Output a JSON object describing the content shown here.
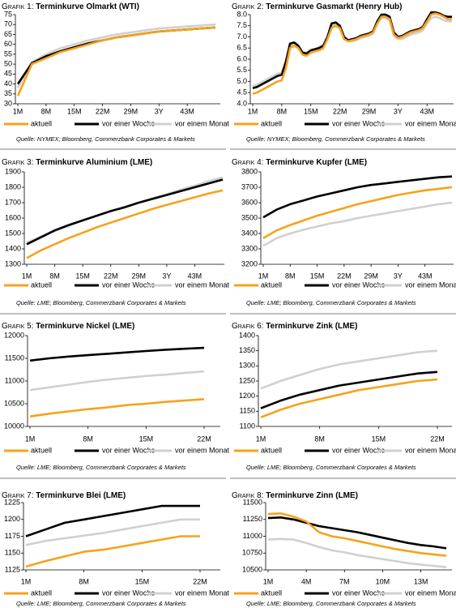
{
  "chart_data": [
    {
      "type": "line",
      "label": "Grafik 1:",
      "title": "Terminkurve Olmarkt (WTI)",
      "categories": [
        "1M",
        null,
        "8M",
        null,
        "15M",
        null,
        "22M",
        null,
        "29M",
        null,
        "3Y",
        null,
        "43M",
        null,
        null
      ],
      "series": [
        {
          "name": "aktuell",
          "color": "#f7a21b",
          "values": [
            34,
            50,
            53,
            56,
            58,
            60,
            62,
            63.5,
            64.5,
            65.5,
            66.5,
            67,
            67.5,
            68,
            68.5
          ]
        },
        {
          "name": "vor einer Woche",
          "color": "#000000",
          "values": [
            40,
            50.5,
            54,
            56.5,
            58.5,
            60.5,
            62,
            63.5,
            64.5,
            65.5,
            66.5,
            67,
            67.5,
            68,
            68.5
          ]
        },
        {
          "name": "vor einem Monat",
          "color": "#d0d0d0",
          "values": [
            38,
            51,
            55,
            58,
            60,
            62,
            63.5,
            65,
            66,
            67,
            68,
            68.5,
            69,
            69.5,
            70
          ]
        }
      ],
      "ylim": [
        30,
        75
      ],
      "yticks": [
        30,
        35,
        40,
        45,
        50,
        55,
        60,
        65,
        70,
        75
      ],
      "source": "Quelle: NYMEX; Bloomberg, Commerzbank Corporates & Markets"
    },
    {
      "type": "line",
      "label": "Grafik 2:",
      "title": "Terminkurve Gasmarkt (Henry Hub)",
      "categories": [
        "1M",
        null,
        null,
        null,
        null,
        null,
        null,
        "8M",
        null,
        null,
        null,
        null,
        null,
        null,
        "15M",
        null,
        null,
        null,
        null,
        null,
        null,
        "22M",
        null,
        null,
        null,
        null,
        null,
        null,
        "29M",
        null,
        null,
        null,
        null,
        null,
        null,
        "3Y",
        null,
        null,
        null,
        null,
        null,
        null,
        "43M",
        null,
        null,
        null,
        null,
        null,
        null
      ],
      "series": [
        {
          "name": "aktuell",
          "color": "#f7a21b",
          "values": [
            4.45,
            4.5,
            4.6,
            4.7,
            4.8,
            4.9,
            5.0,
            5.05,
            5.6,
            6.5,
            6.6,
            6.5,
            6.2,
            6.15,
            6.3,
            6.35,
            6.4,
            6.5,
            6.9,
            7.4,
            7.5,
            7.4,
            6.9,
            6.8,
            6.85,
            6.9,
            7.0,
            7.05,
            7.1,
            7.2,
            7.6,
            7.9,
            7.9,
            7.8,
            7.1,
            6.95,
            7.0,
            7.1,
            7.2,
            7.25,
            7.3,
            7.4,
            7.7,
            8.0,
            8.05,
            8.0,
            7.9,
            7.8,
            7.8
          ]
        },
        {
          "name": "vor einer Woche",
          "color": "#000000",
          "values": [
            4.7,
            4.75,
            4.85,
            4.95,
            5.05,
            5.15,
            5.25,
            5.3,
            5.9,
            6.7,
            6.75,
            6.6,
            6.3,
            6.25,
            6.4,
            6.45,
            6.5,
            6.6,
            7.0,
            7.6,
            7.65,
            7.5,
            7.0,
            6.85,
            6.9,
            6.95,
            7.05,
            7.1,
            7.15,
            7.25,
            7.7,
            8.0,
            8.0,
            7.9,
            7.2,
            7.0,
            7.05,
            7.15,
            7.25,
            7.3,
            7.35,
            7.45,
            7.8,
            8.1,
            8.1,
            8.05,
            7.95,
            7.9,
            7.9
          ]
        },
        {
          "name": "vor einem Monat",
          "color": "#d0d0d0",
          "values": [
            4.8,
            4.85,
            4.95,
            5.05,
            5.15,
            5.25,
            5.35,
            5.4,
            5.9,
            6.6,
            6.7,
            6.55,
            6.3,
            6.3,
            6.4,
            6.45,
            6.55,
            6.65,
            7.0,
            7.5,
            7.55,
            7.4,
            6.95,
            6.8,
            6.8,
            6.85,
            6.95,
            7.0,
            7.05,
            7.15,
            7.6,
            7.85,
            7.85,
            7.75,
            7.05,
            6.9,
            6.9,
            7.0,
            7.1,
            7.15,
            7.2,
            7.3,
            7.6,
            7.85,
            7.9,
            7.85,
            7.75,
            7.7,
            7.7
          ]
        }
      ],
      "ylim": [
        4,
        8
      ],
      "yticks": [
        {
          "value": 4,
          "label": "4.0"
        },
        {
          "value": 4.5,
          "label": "4.5"
        },
        {
          "value": 5,
          "label": "5.0"
        },
        {
          "value": 5.5,
          "label": "5.5"
        },
        {
          "value": 6,
          "label": "6.0"
        },
        {
          "value": 6.5,
          "label": "6.5"
        },
        {
          "value": 7,
          "label": "7.0"
        },
        {
          "value": 7.5,
          "label": "7.5"
        },
        {
          "value": 8,
          "label": "8.0"
        }
      ],
      "source": "Quelle: NYMEX; Bloomberg, Commerzbank Corporates & Markets"
    },
    {
      "type": "line",
      "label": "Grafik 3:",
      "title": "Terminkurve Aluminium (LME)",
      "categories": [
        "1M",
        null,
        "8M",
        null,
        "15M",
        null,
        "22M",
        null,
        "29M",
        null,
        "3Y",
        null,
        "43M",
        null,
        null
      ],
      "series": [
        {
          "name": "aktuell",
          "color": "#f7a21b",
          "values": [
            1340,
            1390,
            1430,
            1470,
            1505,
            1540,
            1570,
            1600,
            1630,
            1660,
            1685,
            1710,
            1735,
            1760,
            1780
          ]
        },
        {
          "name": "vor einer Woche",
          "color": "#000000",
          "values": [
            1430,
            1475,
            1520,
            1555,
            1585,
            1615,
            1645,
            1670,
            1700,
            1725,
            1750,
            1775,
            1800,
            1825,
            1850
          ]
        },
        {
          "name": "vor einem Monat",
          "color": "#d0d0d0",
          "values": [
            1440,
            1480,
            1515,
            1550,
            1585,
            1615,
            1645,
            1675,
            1700,
            1730,
            1755,
            1785,
            1810,
            1840,
            1865
          ]
        }
      ],
      "ylim": [
        1300,
        1900
      ],
      "yticks": [
        1300,
        1400,
        1500,
        1600,
        1700,
        1800,
        1900
      ],
      "source": "Quelle: LME; Bloomberg, Commerzbank Corporates & Markets"
    },
    {
      "type": "line",
      "label": "Grafik 4:",
      "title": "Terminkurve Kupfer (LME)",
      "categories": [
        "1M",
        null,
        "8M",
        null,
        "15M",
        null,
        "22M",
        null,
        "29M",
        null,
        "3Y",
        null,
        "43M",
        null,
        null
      ],
      "series": [
        {
          "name": "aktuell",
          "color": "#f7a21b",
          "values": [
            3370,
            3420,
            3455,
            3485,
            3515,
            3540,
            3565,
            3590,
            3610,
            3630,
            3650,
            3665,
            3680,
            3690,
            3700
          ]
        },
        {
          "name": "vor einer Woche",
          "color": "#000000",
          "values": [
            3505,
            3555,
            3590,
            3615,
            3640,
            3660,
            3680,
            3700,
            3715,
            3725,
            3735,
            3745,
            3755,
            3765,
            3770
          ]
        },
        {
          "name": "vor einem Monat",
          "color": "#d0d0d0",
          "values": [
            3320,
            3370,
            3400,
            3425,
            3445,
            3465,
            3480,
            3500,
            3515,
            3530,
            3545,
            3560,
            3575,
            3590,
            3600
          ]
        }
      ],
      "ylim": [
        3200,
        3800
      ],
      "yticks": [
        3200,
        3300,
        3400,
        3500,
        3600,
        3700,
        3800
      ],
      "source": "Quelle: LME; Bloomberg, Commerzbank Corporates & Markets"
    },
    {
      "type": "line",
      "label": "Grafik 5:",
      "title": "Terminkurve Nickel (LME)",
      "categories": [
        "1M",
        null,
        null,
        "8M",
        null,
        null,
        "15M",
        null,
        null,
        "22M"
      ],
      "series": [
        {
          "name": "aktuell",
          "color": "#f7a21b",
          "values": [
            10220,
            10280,
            10330,
            10380,
            10420,
            10470,
            10500,
            10540,
            10570,
            10600
          ]
        },
        {
          "name": "vor einer Woche",
          "color": "#000000",
          "values": [
            11450,
            11500,
            11540,
            11570,
            11600,
            11630,
            11660,
            11690,
            11710,
            11730
          ]
        },
        {
          "name": "vor einem Monat",
          "color": "#d0d0d0",
          "values": [
            10800,
            10860,
            10920,
            10980,
            11030,
            11070,
            11110,
            11140,
            11180,
            11210
          ]
        }
      ],
      "ylim": [
        10000,
        12000
      ],
      "yticks": [
        10000,
        10500,
        11000,
        11500,
        12000
      ],
      "source": "Quelle: LME; Bloomberg, Commerzbank Corporates & Markets"
    },
    {
      "type": "line",
      "label": "Grafik 6:",
      "title": "Terminkurve Zink (LME)",
      "categories": [
        "1M",
        null,
        null,
        "8M",
        null,
        null,
        "15M",
        null,
        null,
        "22M"
      ],
      "series": [
        {
          "name": "aktuell",
          "color": "#f7a21b",
          "values": [
            1130,
            1155,
            1175,
            1190,
            1205,
            1220,
            1230,
            1240,
            1250,
            1255
          ]
        },
        {
          "name": "vor einer Woche",
          "color": "#000000",
          "values": [
            1160,
            1185,
            1205,
            1220,
            1235,
            1245,
            1255,
            1265,
            1275,
            1280
          ]
        },
        {
          "name": "vor einem Monat",
          "color": "#d0d0d0",
          "values": [
            1225,
            1250,
            1270,
            1290,
            1305,
            1315,
            1325,
            1335,
            1345,
            1350
          ]
        }
      ],
      "ylim": [
        1100,
        1400
      ],
      "yticks": [
        1100,
        1150,
        1200,
        1250,
        1300,
        1350,
        1400
      ],
      "source": "Quelle: LME; Bloomberg, Commerzbank Corporates & Markets"
    },
    {
      "type": "line",
      "label": "Grafik 7:",
      "title": "Terminkurve Blei (LME)",
      "categories": [
        "1M",
        null,
        null,
        "8M",
        null,
        null,
        "15M",
        null,
        null,
        "22M"
      ],
      "series": [
        {
          "name": "aktuell",
          "color": "#f7a21b",
          "values": [
            1130,
            1138,
            1145,
            1152,
            1155,
            1160,
            1165,
            1170,
            1175,
            1175
          ]
        },
        {
          "name": "vor einer Woche",
          "color": "#000000",
          "values": [
            1175,
            1185,
            1195,
            1200,
            1205,
            1210,
            1215,
            1220,
            1220,
            1220
          ]
        },
        {
          "name": "vor einem Monat",
          "color": "#d0d0d0",
          "values": [
            1162,
            1168,
            1172,
            1176,
            1180,
            1185,
            1190,
            1195,
            1200,
            1200
          ]
        }
      ],
      "ylim": [
        1125,
        1225
      ],
      "yticks": [
        1125,
        1150,
        1175,
        1200,
        1225
      ],
      "source": "Quelle: LME; Bloomberg, Commerzbank Corporates & Markets"
    },
    {
      "type": "line",
      "label": "Grafik 8:",
      "title": "Terminkurve Zinn (LME)",
      "categories": [
        "1M",
        null,
        null,
        "4M",
        null,
        null,
        "7M",
        null,
        null,
        "10M",
        null,
        null,
        "13M",
        null,
        null
      ],
      "series": [
        {
          "name": "aktuell",
          "color": "#f7a21b",
          "values": [
            11330,
            11340,
            11290,
            11220,
            11060,
            11000,
            10970,
            10930,
            10890,
            10850,
            10810,
            10780,
            10750,
            10730,
            10710
          ]
        },
        {
          "name": "vor einer Woche",
          "color": "#000000",
          "values": [
            11270,
            11280,
            11250,
            11200,
            11150,
            11120,
            11090,
            11060,
            11020,
            10980,
            10940,
            10900,
            10870,
            10850,
            10820
          ]
        },
        {
          "name": "vor einem Monat",
          "color": "#d0d0d0",
          "values": [
            10950,
            10960,
            10950,
            10900,
            10840,
            10790,
            10760,
            10720,
            10690,
            10660,
            10630,
            10600,
            10580,
            10560,
            10540
          ]
        }
      ],
      "ylim": [
        10500,
        11500
      ],
      "yticks": [
        10500,
        10750,
        11000,
        11250,
        11500
      ],
      "source": "Quelle: LME; Bloomberg, Commerzbank Corporates & Markets"
    }
  ]
}
